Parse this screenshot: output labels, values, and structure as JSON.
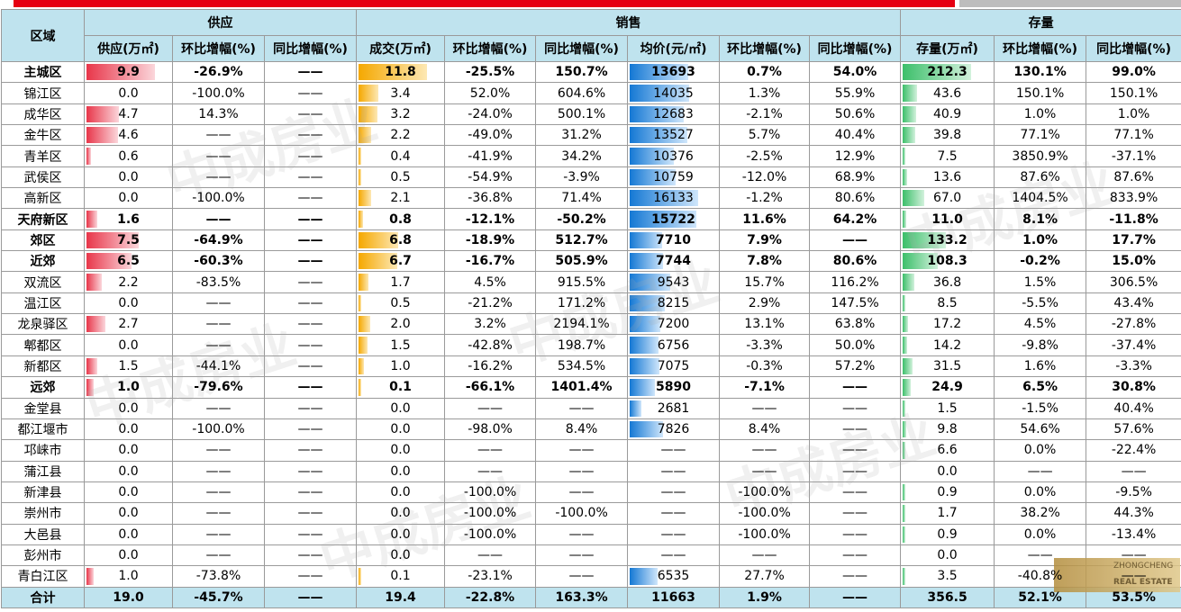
{
  "header": {
    "region": "区域",
    "supply": "供应",
    "sales": "销售",
    "inventory": "存量",
    "cols": [
      "供应(万㎡)",
      "环比增幅(%)",
      "同比增幅(%)",
      "成交(万㎡)",
      "环比增幅(%)",
      "同比增幅(%)",
      "均价(元/㎡)",
      "环比增幅(%)",
      "同比增幅(%)",
      "存量(万㎡)",
      "环比增幅(%)",
      "同比增幅(%)"
    ]
  },
  "rows": [
    {
      "name": "主城区",
      "bold": true,
      "v": [
        "9.9",
        "-26.9%",
        "——",
        "11.8",
        "-25.5%",
        "150.7%",
        "13693",
        "0.7%",
        "54.0%",
        "212.3",
        "130.1%",
        "99.0%"
      ]
    },
    {
      "name": "锦江区",
      "bold": false,
      "v": [
        "0.0",
        "-100.0%",
        "——",
        "3.4",
        "52.0%",
        "604.6%",
        "14035",
        "1.3%",
        "55.9%",
        "43.6",
        "150.1%",
        "150.1%"
      ]
    },
    {
      "name": "成华区",
      "bold": false,
      "v": [
        "4.7",
        "14.3%",
        "——",
        "3.2",
        "-24.0%",
        "500.1%",
        "12683",
        "-2.1%",
        "50.6%",
        "40.9",
        "1.0%",
        "1.0%"
      ]
    },
    {
      "name": "金牛区",
      "bold": false,
      "v": [
        "4.6",
        "——",
        "——",
        "2.2",
        "-49.0%",
        "31.2%",
        "13527",
        "5.7%",
        "40.4%",
        "39.8",
        "77.1%",
        "77.1%"
      ]
    },
    {
      "name": "青羊区",
      "bold": false,
      "v": [
        "0.6",
        "——",
        "——",
        "0.4",
        "-41.9%",
        "34.2%",
        "10376",
        "-2.5%",
        "12.9%",
        "7.5",
        "3850.9%",
        "-37.1%"
      ]
    },
    {
      "name": "武侯区",
      "bold": false,
      "v": [
        "0.0",
        "——",
        "——",
        "0.5",
        "-54.9%",
        "-3.9%",
        "10759",
        "-12.0%",
        "68.9%",
        "13.6",
        "87.6%",
        "87.6%"
      ]
    },
    {
      "name": "高新区",
      "bold": false,
      "v": [
        "0.0",
        "-100.0%",
        "——",
        "2.1",
        "-36.8%",
        "71.4%",
        "16133",
        "-1.2%",
        "80.6%",
        "67.0",
        "1404.5%",
        "833.9%"
      ]
    },
    {
      "name": "天府新区",
      "bold": true,
      "v": [
        "1.6",
        "——",
        "——",
        "0.8",
        "-12.1%",
        "-50.2%",
        "15722",
        "11.6%",
        "64.2%",
        "11.0",
        "8.1%",
        "-11.8%"
      ]
    },
    {
      "name": "郊区",
      "bold": true,
      "v": [
        "7.5",
        "-64.9%",
        "——",
        "6.8",
        "-18.9%",
        "512.7%",
        "7710",
        "7.9%",
        "——",
        "133.2",
        "1.0%",
        "17.7%"
      ]
    },
    {
      "name": "近郊",
      "bold": true,
      "v": [
        "6.5",
        "-60.3%",
        "——",
        "6.7",
        "-16.7%",
        "505.9%",
        "7744",
        "7.8%",
        "80.6%",
        "108.3",
        "-0.2%",
        "15.0%"
      ]
    },
    {
      "name": "双流区",
      "bold": false,
      "v": [
        "2.2",
        "-83.5%",
        "——",
        "1.7",
        "4.5%",
        "915.5%",
        "9543",
        "15.7%",
        "116.2%",
        "36.8",
        "1.5%",
        "306.5%"
      ]
    },
    {
      "name": "温江区",
      "bold": false,
      "v": [
        "0.0",
        "——",
        "——",
        "0.5",
        "-21.2%",
        "171.2%",
        "8215",
        "2.9%",
        "147.5%",
        "8.5",
        "-5.5%",
        "43.4%"
      ]
    },
    {
      "name": "龙泉驿区",
      "bold": false,
      "v": [
        "2.7",
        "——",
        "——",
        "2.0",
        "3.2%",
        "2194.1%",
        "7200",
        "13.1%",
        "63.8%",
        "17.2",
        "4.5%",
        "-27.8%"
      ]
    },
    {
      "name": "郫都区",
      "bold": false,
      "v": [
        "0.0",
        "——",
        "——",
        "1.5",
        "-42.8%",
        "198.7%",
        "6756",
        "-3.3%",
        "50.0%",
        "14.2",
        "-9.8%",
        "-37.4%"
      ]
    },
    {
      "name": "新都区",
      "bold": false,
      "v": [
        "1.5",
        "-44.1%",
        "——",
        "1.0",
        "-16.2%",
        "534.5%",
        "7075",
        "-0.3%",
        "57.2%",
        "31.5",
        "1.6%",
        "-3.3%"
      ]
    },
    {
      "name": "远郊",
      "bold": true,
      "v": [
        "1.0",
        "-79.6%",
        "——",
        "0.1",
        "-66.1%",
        "1401.4%",
        "5890",
        "-7.1%",
        "——",
        "24.9",
        "6.5%",
        "30.8%"
      ]
    },
    {
      "name": "金堂县",
      "bold": false,
      "v": [
        "0.0",
        "——",
        "——",
        "0.0",
        "——",
        "——",
        "2681",
        "——",
        "——",
        "1.5",
        "-1.5%",
        "40.4%"
      ]
    },
    {
      "name": "都江堰市",
      "bold": false,
      "v": [
        "0.0",
        "-100.0%",
        "——",
        "0.0",
        "-98.0%",
        "8.4%",
        "7826",
        "8.4%",
        "——",
        "9.8",
        "54.6%",
        "57.6%"
      ]
    },
    {
      "name": "邛崃市",
      "bold": false,
      "v": [
        "0.0",
        "——",
        "——",
        "0.0",
        "——",
        "——",
        "——",
        "——",
        "——",
        "6.6",
        "0.0%",
        "-22.4%"
      ]
    },
    {
      "name": "蒲江县",
      "bold": false,
      "v": [
        "0.0",
        "——",
        "——",
        "0.0",
        "——",
        "——",
        "——",
        "——",
        "——",
        "0.0",
        "——",
        "——"
      ]
    },
    {
      "name": "新津县",
      "bold": false,
      "v": [
        "0.0",
        "——",
        "——",
        "0.0",
        "-100.0%",
        "——",
        "——",
        "-100.0%",
        "——",
        "0.9",
        "0.0%",
        "-9.5%"
      ]
    },
    {
      "name": "崇州市",
      "bold": false,
      "v": [
        "0.0",
        "——",
        "——",
        "0.0",
        "-100.0%",
        "-100.0%",
        "——",
        "-100.0%",
        "——",
        "1.7",
        "38.2%",
        "44.3%"
      ]
    },
    {
      "name": "大邑县",
      "bold": false,
      "v": [
        "0.0",
        "——",
        "——",
        "0.0",
        "-100.0%",
        "——",
        "——",
        "-100.0%",
        "——",
        "0.9",
        "0.0%",
        "-13.4%"
      ]
    },
    {
      "name": "彭州市",
      "bold": false,
      "v": [
        "0.0",
        "——",
        "——",
        "0.0",
        "——",
        "——",
        "——",
        "——",
        "——",
        "0.0",
        "——",
        "——"
      ]
    },
    {
      "name": "青白江区",
      "bold": false,
      "v": [
        "1.0",
        "-73.8%",
        "——",
        "0.1",
        "-23.1%",
        "——",
        "6535",
        "27.7%",
        "——",
        "3.5",
        "-40.8%",
        "——"
      ]
    }
  ],
  "total": {
    "name": "合计",
    "v": [
      "19.0",
      "-45.7%",
      "——",
      "19.4",
      "-22.8%",
      "163.3%",
      "11663",
      "1.9%",
      "——",
      "356.5",
      "52.1%",
      "53.5%"
    ]
  },
  "bars": {
    "supply_max": 9.9,
    "deal_max": 11.8,
    "price_max": 16133,
    "inventory_max": 212.3
  },
  "watermark": {
    "cn": "中成房业",
    "en": "ZHONGCHENG REAL ESTATE"
  },
  "logo": {
    "cn": "ZHONGCHENG",
    "en": "REAL ESTATE"
  },
  "colors": {
    "header_bg": "#bfe3ee",
    "red": "#e60012",
    "orange": "#f5a800",
    "blue": "#1478d4",
    "green": "#3cbf6a"
  }
}
